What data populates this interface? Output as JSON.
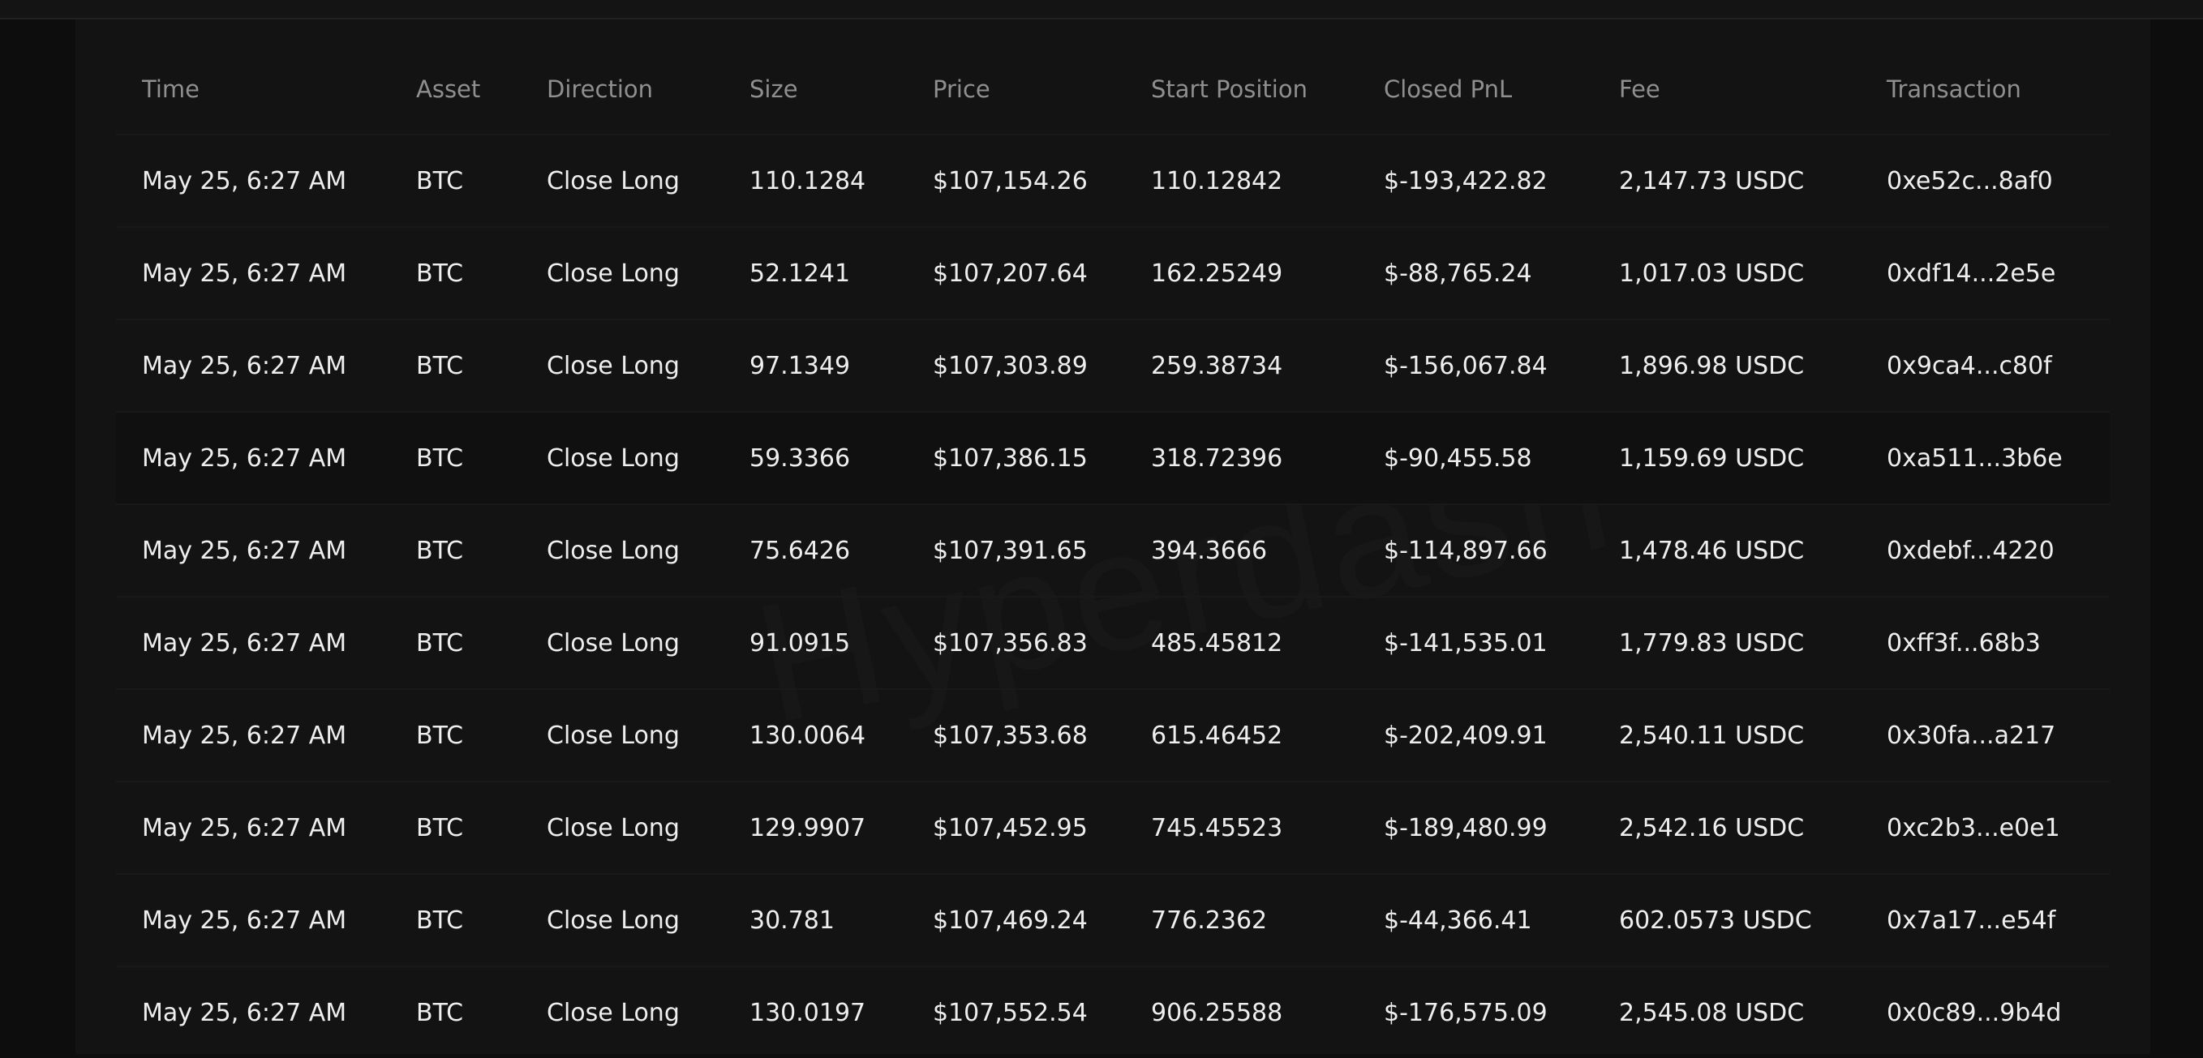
{
  "watermark": "Hyperdash",
  "table": {
    "columns": [
      "Time",
      "Asset",
      "Direction",
      "Size",
      "Price",
      "Start Position",
      "Closed PnL",
      "Fee",
      "Transaction"
    ],
    "rows": [
      {
        "time": "May 25, 6:27 AM",
        "asset": "BTC",
        "direction": "Close Long",
        "size": "110.1284",
        "price": "$107,154.26",
        "start_position": "110.12842",
        "closed_pnl": "$-193,422.82",
        "fee": "2,147.73 USDC",
        "transaction": "0xe52c...8af0"
      },
      {
        "time": "May 25, 6:27 AM",
        "asset": "BTC",
        "direction": "Close Long",
        "size": "52.1241",
        "price": "$107,207.64",
        "start_position": "162.25249",
        "closed_pnl": "$-88,765.24",
        "fee": "1,017.03 USDC",
        "transaction": "0xdf14...2e5e"
      },
      {
        "time": "May 25, 6:27 AM",
        "asset": "BTC",
        "direction": "Close Long",
        "size": "97.1349",
        "price": "$107,303.89",
        "start_position": "259.38734",
        "closed_pnl": "$-156,067.84",
        "fee": "1,896.98 USDC",
        "transaction": "0x9ca4...c80f"
      },
      {
        "time": "May 25, 6:27 AM",
        "asset": "BTC",
        "direction": "Close Long",
        "size": "59.3366",
        "price": "$107,386.15",
        "start_position": "318.72396",
        "closed_pnl": "$-90,455.58",
        "fee": "1,159.69 USDC",
        "transaction": "0xa511...3b6e"
      },
      {
        "time": "May 25, 6:27 AM",
        "asset": "BTC",
        "direction": "Close Long",
        "size": "75.6426",
        "price": "$107,391.65",
        "start_position": "394.3666",
        "closed_pnl": "$-114,897.66",
        "fee": "1,478.46 USDC",
        "transaction": "0xdebf...4220"
      },
      {
        "time": "May 25, 6:27 AM",
        "asset": "BTC",
        "direction": "Close Long",
        "size": "91.0915",
        "price": "$107,356.83",
        "start_position": "485.45812",
        "closed_pnl": "$-141,535.01",
        "fee": "1,779.83 USDC",
        "transaction": "0xff3f...68b3"
      },
      {
        "time": "May 25, 6:27 AM",
        "asset": "BTC",
        "direction": "Close Long",
        "size": "130.0064",
        "price": "$107,353.68",
        "start_position": "615.46452",
        "closed_pnl": "$-202,409.91",
        "fee": "2,540.11 USDC",
        "transaction": "0x30fa...a217"
      },
      {
        "time": "May 25, 6:27 AM",
        "asset": "BTC",
        "direction": "Close Long",
        "size": "129.9907",
        "price": "$107,452.95",
        "start_position": "745.45523",
        "closed_pnl": "$-189,480.99",
        "fee": "2,542.16 USDC",
        "transaction": "0xc2b3...e0e1"
      },
      {
        "time": "May 25, 6:27 AM",
        "asset": "BTC",
        "direction": "Close Long",
        "size": "30.781",
        "price": "$107,469.24",
        "start_position": "776.2362",
        "closed_pnl": "$-44,366.41",
        "fee": "602.0573 USDC",
        "transaction": "0x7a17...e54f"
      },
      {
        "time": "May 25, 6:27 AM",
        "asset": "BTC",
        "direction": "Close Long",
        "size": "130.0197",
        "price": "$107,552.54",
        "start_position": "906.25588",
        "closed_pnl": "$-176,575.09",
        "fee": "2,545.08 USDC",
        "transaction": "0x0c89...9b4d"
      }
    ]
  },
  "colors": {
    "direction_long": "#6fc895",
    "pnl_negative": "#ea6b63",
    "text_primary": "#eeeeee",
    "text_muted": "#a3a3a3",
    "header_text": "#8f8f8f",
    "background": "#131313"
  }
}
